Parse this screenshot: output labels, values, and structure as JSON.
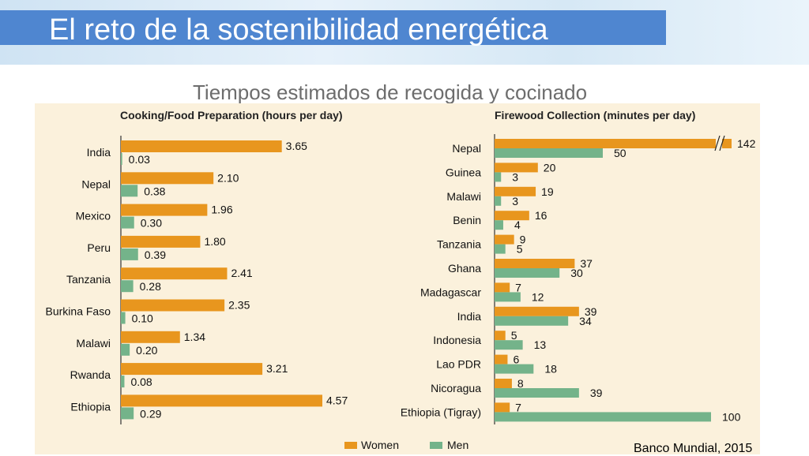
{
  "slide": {
    "title": "El reto de la sostenibilidad energética",
    "subtitle": "Tiempos estimados de recogida y cocinado",
    "source": "Banco Mundial, 2015"
  },
  "colors": {
    "women": "#e8961e",
    "men": "#74b38a",
    "panel": "#fbf1dc",
    "title_bar": "#4f86d0"
  },
  "chart_data": [
    {
      "type": "bar",
      "orientation": "horizontal",
      "title": "Cooking/Food Preparation (hours per day)",
      "categories": [
        "India",
        "Nepal",
        "Mexico",
        "Peru",
        "Tanzania",
        "Burkina Faso",
        "Malawi",
        "Rwanda",
        "Ethiopia"
      ],
      "series": [
        {
          "name": "Women",
          "values": [
            3.65,
            2.1,
            1.96,
            1.8,
            2.41,
            2.35,
            1.34,
            3.21,
            4.57
          ],
          "labels": [
            "3.65",
            "2.10",
            "1.96",
            "1.80",
            "2.41",
            "2.35",
            "1.34",
            "3.21",
            "4.57"
          ]
        },
        {
          "name": "Men",
          "values": [
            0.03,
            0.38,
            0.3,
            0.39,
            0.28,
            0.1,
            0.2,
            0.08,
            0.29
          ],
          "labels": [
            "0.03",
            "0.38",
            "0.30",
            "0.39",
            "0.28",
            "0.10",
            "0.20",
            "0.08",
            "0.29"
          ]
        }
      ]
    },
    {
      "type": "bar",
      "orientation": "horizontal",
      "title": "Firewood Collection (minutes per day)",
      "categories": [
        "Nepal",
        "Guinea",
        "Malawi",
        "Benin",
        "Tanzania",
        "Ghana",
        "Madagascar",
        "India",
        "Indonesia",
        "Lao PDR",
        "Nicoragua",
        "Ethiopia (Tigray)"
      ],
      "axis_break": "Nepal women bar is truncated with a break mark",
      "series": [
        {
          "name": "Women",
          "values": [
            142,
            20,
            19,
            16,
            9,
            37,
            7,
            39,
            5,
            6,
            8,
            7
          ],
          "labels": [
            "142",
            "20",
            "19",
            "16",
            "9",
            "37",
            "7",
            "39",
            "5",
            "6",
            "8",
            "7"
          ]
        },
        {
          "name": "Men",
          "values": [
            50,
            3,
            3,
            4,
            5,
            30,
            12,
            34,
            13,
            18,
            39,
            100
          ],
          "labels": [
            "50",
            "3",
            "3",
            "4",
            "5",
            "30",
            "12",
            "34",
            "13",
            "18",
            "39",
            "100"
          ]
        }
      ]
    }
  ],
  "legend": {
    "items": [
      "Women",
      "Men"
    ],
    "position": "bottom"
  }
}
